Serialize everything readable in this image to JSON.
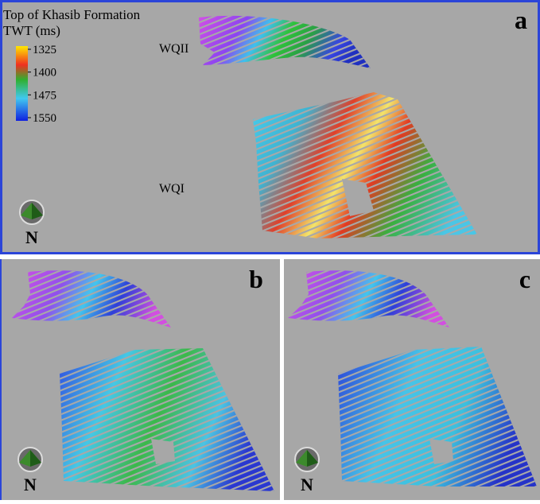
{
  "panels": [
    {
      "label": "a",
      "north": "N",
      "title": "Top of Khasib Formation",
      "subtitle": "TWT (ms)",
      "colorbar": [
        1325,
        1400,
        1475,
        1550
      ],
      "fields": [
        "WQII",
        "WQI"
      ]
    },
    {
      "label": "b",
      "north": "N"
    },
    {
      "label": "c",
      "north": "N"
    }
  ]
}
